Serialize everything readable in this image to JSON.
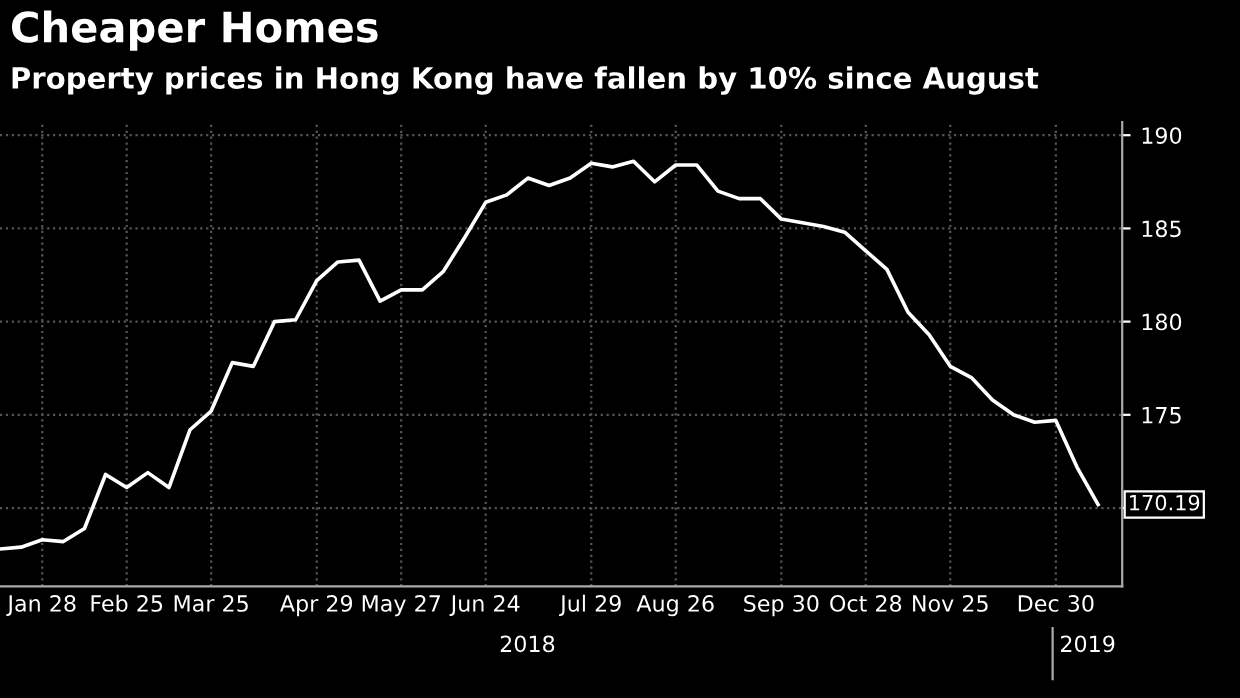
{
  "chart_data": {
    "type": "line",
    "title": "Cheaper Homes",
    "subtitle": "Property prices in Hong Kong have fallen by 10% since August",
    "x": [
      "2018-01-14",
      "2018-01-21",
      "2018-01-28",
      "2018-02-04",
      "2018-02-11",
      "2018-02-18",
      "2018-02-25",
      "2018-03-04",
      "2018-03-11",
      "2018-03-18",
      "2018-03-25",
      "2018-04-01",
      "2018-04-08",
      "2018-04-15",
      "2018-04-22",
      "2018-04-29",
      "2018-05-06",
      "2018-05-13",
      "2018-05-20",
      "2018-05-27",
      "2018-06-03",
      "2018-06-10",
      "2018-06-17",
      "2018-06-24",
      "2018-07-01",
      "2018-07-08",
      "2018-07-15",
      "2018-07-22",
      "2018-07-29",
      "2018-08-05",
      "2018-08-12",
      "2018-08-19",
      "2018-08-26",
      "2018-09-02",
      "2018-09-09",
      "2018-09-16",
      "2018-09-23",
      "2018-09-30",
      "2018-10-07",
      "2018-10-14",
      "2018-10-21",
      "2018-10-28",
      "2018-11-04",
      "2018-11-11",
      "2018-11-18",
      "2018-11-25",
      "2018-12-02",
      "2018-12-09",
      "2018-12-16",
      "2018-12-23",
      "2018-12-30",
      "2019-01-06",
      "2019-01-13"
    ],
    "series": [
      {
        "color": "#ffffff",
        "values": [
          167.8,
          167.9,
          168.3,
          168.2,
          168.9,
          171.8,
          171.1,
          171.9,
          171.1,
          174.2,
          175.2,
          177.8,
          177.6,
          180.0,
          180.1,
          182.2,
          183.2,
          183.3,
          181.1,
          181.7,
          181.7,
          182.7,
          184.5,
          186.4,
          186.8,
          187.7,
          187.3,
          187.7,
          188.5,
          188.3,
          188.6,
          187.5,
          188.4,
          188.4,
          187.0,
          186.6,
          186.6,
          185.5,
          185.3,
          185.1,
          184.8,
          183.8,
          182.8,
          180.5,
          179.3,
          177.6,
          177.0,
          175.8,
          175.0,
          174.6,
          174.7,
          172.2,
          170.19
        ],
        "value_labels": [
          null,
          null,
          null,
          null,
          null,
          null,
          null,
          null,
          null,
          null,
          null,
          null,
          null,
          null,
          null,
          null,
          null,
          null,
          null,
          null,
          null,
          null,
          null,
          null,
          null,
          null,
          null,
          null,
          null,
          null,
          null,
          null,
          null,
          null,
          null,
          null,
          null,
          null,
          null,
          null,
          null,
          null,
          null,
          null,
          null,
          null,
          null,
          null,
          null,
          null,
          null,
          null,
          "170.19"
        ]
      }
    ],
    "xlim": [
      "2018-01-14",
      "2019-01-21"
    ],
    "xticks": [
      {
        "value": "2018-01-28",
        "label": "Jan 28"
      },
      {
        "value": "2018-02-25",
        "label": "Feb 25"
      },
      {
        "value": "2018-03-25",
        "label": "Mar 25"
      },
      {
        "value": "2018-04-29",
        "label": "Apr 29"
      },
      {
        "value": "2018-05-27",
        "label": "May 27"
      },
      {
        "value": "2018-06-24",
        "label": "Jun 24"
      },
      {
        "value": "2018-07-29",
        "label": "Jul 29"
      },
      {
        "value": "2018-08-26",
        "label": "Aug 26"
      },
      {
        "value": "2018-09-30",
        "label": "Sep 30"
      },
      {
        "value": "2018-10-28",
        "label": "Oct 28"
      },
      {
        "value": "2018-11-25",
        "label": "Nov 25"
      },
      {
        "value": "2018-12-30",
        "label": "Dec 30"
      }
    ],
    "ylim": [
      165.8,
      190.7
    ],
    "yticks": [
      {
        "value": 170,
        "label": null
      },
      175,
      180,
      185,
      190
    ],
    "annotations": [
      "2018",
      "2019"
    ],
    "grid": true,
    "marker": "none",
    "line_style": "solid",
    "legend": false
  }
}
